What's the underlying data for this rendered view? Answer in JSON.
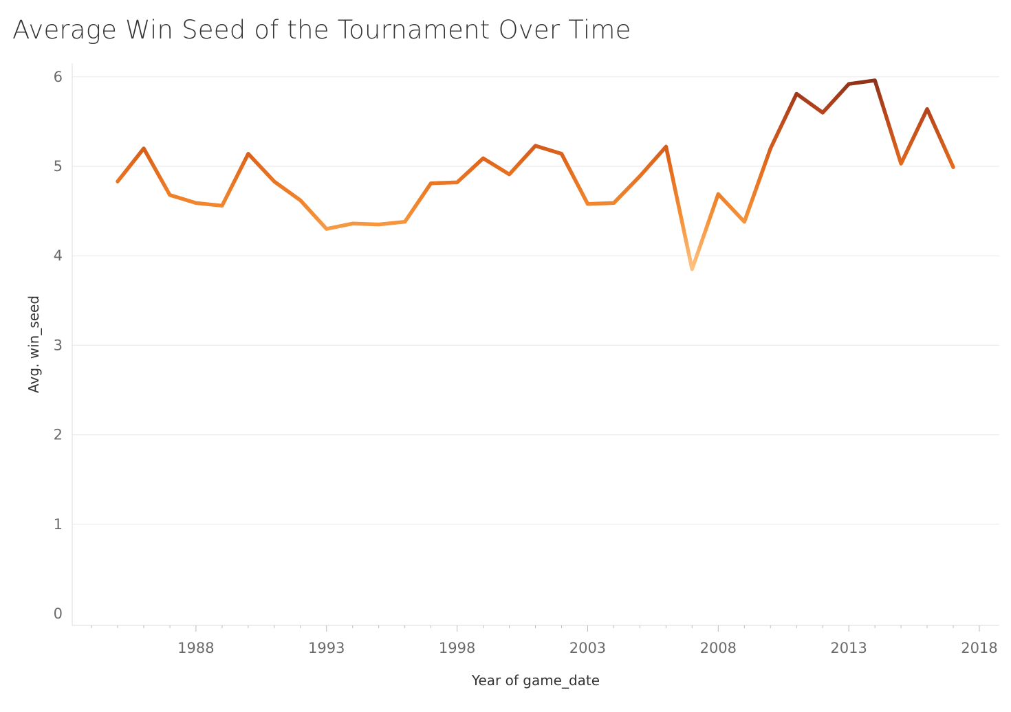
{
  "chart_data": {
    "type": "line",
    "title": "Average Win Seed of the Tournament Over Time",
    "xlabel": "Year of game_date",
    "ylabel": "Avg. win_seed",
    "x_ticks": [
      "1988",
      "1993",
      "1998",
      "2003",
      "2008",
      "2013",
      "2018"
    ],
    "y_ticks": [
      "0",
      "1",
      "2",
      "3",
      "4",
      "5",
      "6"
    ],
    "xlim": [
      1983,
      2018.5
    ],
    "ylim": [
      0,
      6.3
    ],
    "grid": true,
    "legend": "none",
    "color_scale": [
      "#fdc382",
      "#f48f35",
      "#e36a1c",
      "#b8461c",
      "#8f321a"
    ],
    "series": [
      {
        "x": [
          1985,
          1986,
          1987,
          1988,
          1989,
          1990,
          1991,
          1992,
          1993,
          1994,
          1995,
          1996,
          1997,
          1998,
          1999,
          2000,
          2001,
          2002,
          2003,
          2004,
          2005,
          2006,
          2007,
          2008,
          2009,
          2010,
          2011,
          2012,
          2013,
          2014,
          2015,
          2016,
          2017
        ],
        "values": [
          4.83,
          5.2,
          4.68,
          4.59,
          4.56,
          5.14,
          4.83,
          4.62,
          4.3,
          4.36,
          4.35,
          4.38,
          4.81,
          4.82,
          5.09,
          4.91,
          5.23,
          5.14,
          4.58,
          4.59,
          4.89,
          5.22,
          3.85,
          4.69,
          4.38,
          5.2,
          5.81,
          5.6,
          5.92,
          5.96,
          5.03,
          5.64,
          4.99
        ]
      }
    ]
  }
}
